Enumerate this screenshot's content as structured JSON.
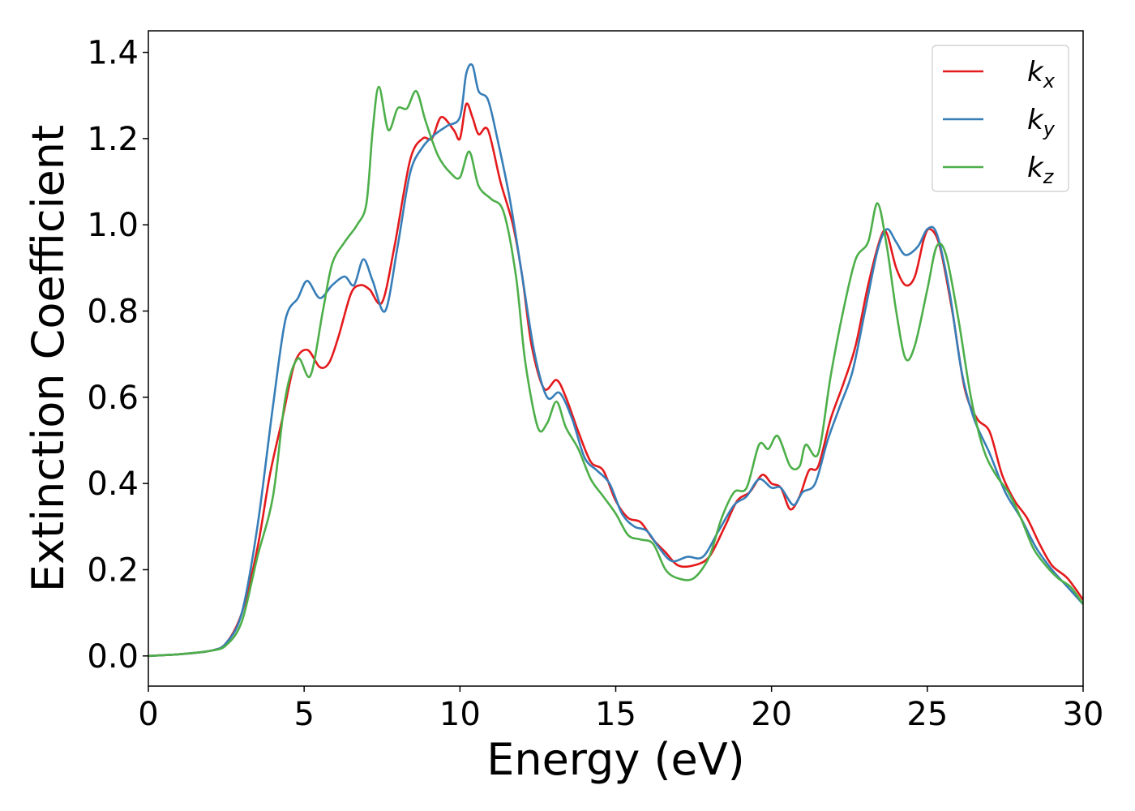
{
  "chart_data": {
    "type": "line",
    "title": "",
    "xlabel": "Energy (eV)",
    "ylabel": "Extinction Coefficient",
    "xlim": [
      0,
      30
    ],
    "ylim": [
      -0.07,
      1.45
    ],
    "xticks": [
      0,
      5,
      10,
      15,
      20,
      25,
      30
    ],
    "xtick_labels": [
      "0",
      "5",
      "10",
      "15",
      "20",
      "25",
      "30"
    ],
    "yticks": [
      0.0,
      0.2,
      0.4,
      0.6,
      0.8,
      1.0,
      1.2,
      1.4
    ],
    "ytick_labels": [
      "0.0",
      "0.2",
      "0.4",
      "0.6",
      "0.8",
      "1.0",
      "1.2",
      "1.4"
    ],
    "grid": false,
    "legend_position": "top-right",
    "series": [
      {
        "name": "k_x",
        "label_base": "k",
        "label_sub": "x",
        "color": "#e41a1c",
        "points": [
          [
            0,
            0
          ],
          [
            1,
            0.004
          ],
          [
            2,
            0.012
          ],
          [
            2.5,
            0.03
          ],
          [
            3,
            0.1
          ],
          [
            3.5,
            0.25
          ],
          [
            3.9,
            0.42
          ],
          [
            4.3,
            0.55
          ],
          [
            4.7,
            0.68
          ],
          [
            5.1,
            0.71
          ],
          [
            5.5,
            0.67
          ],
          [
            5.8,
            0.68
          ],
          [
            6.1,
            0.74
          ],
          [
            6.5,
            0.84
          ],
          [
            6.8,
            0.86
          ],
          [
            7.1,
            0.85
          ],
          [
            7.5,
            0.82
          ],
          [
            7.9,
            0.95
          ],
          [
            8.4,
            1.15
          ],
          [
            8.8,
            1.2
          ],
          [
            9.1,
            1.2
          ],
          [
            9.4,
            1.25
          ],
          [
            9.8,
            1.22
          ],
          [
            10.0,
            1.2
          ],
          [
            10.2,
            1.28
          ],
          [
            10.4,
            1.25
          ],
          [
            10.6,
            1.21
          ],
          [
            10.9,
            1.22
          ],
          [
            11.3,
            1.1
          ],
          [
            11.7,
            1.0
          ],
          [
            12.0,
            0.88
          ],
          [
            12.3,
            0.72
          ],
          [
            12.7,
            0.62
          ],
          [
            13.1,
            0.64
          ],
          [
            13.4,
            0.6
          ],
          [
            13.8,
            0.52
          ],
          [
            14.2,
            0.45
          ],
          [
            14.6,
            0.43
          ],
          [
            15.0,
            0.36
          ],
          [
            15.4,
            0.32
          ],
          [
            15.8,
            0.31
          ],
          [
            16.2,
            0.27
          ],
          [
            16.6,
            0.24
          ],
          [
            17.0,
            0.21
          ],
          [
            17.5,
            0.21
          ],
          [
            18.0,
            0.23
          ],
          [
            18.5,
            0.3
          ],
          [
            18.9,
            0.36
          ],
          [
            19.3,
            0.38
          ],
          [
            19.7,
            0.42
          ],
          [
            20.0,
            0.4
          ],
          [
            20.3,
            0.39
          ],
          [
            20.6,
            0.34
          ],
          [
            20.9,
            0.37
          ],
          [
            21.2,
            0.43
          ],
          [
            21.5,
            0.44
          ],
          [
            21.9,
            0.55
          ],
          [
            22.3,
            0.63
          ],
          [
            22.7,
            0.72
          ],
          [
            23.1,
            0.86
          ],
          [
            23.5,
            0.97
          ],
          [
            23.7,
            0.98
          ],
          [
            24.0,
            0.9
          ],
          [
            24.3,
            0.86
          ],
          [
            24.6,
            0.88
          ],
          [
            24.9,
            0.97
          ],
          [
            25.1,
            0.99
          ],
          [
            25.4,
            0.95
          ],
          [
            25.8,
            0.8
          ],
          [
            26.2,
            0.62
          ],
          [
            26.6,
            0.55
          ],
          [
            27.0,
            0.52
          ],
          [
            27.4,
            0.42
          ],
          [
            27.8,
            0.36
          ],
          [
            28.2,
            0.32
          ],
          [
            28.6,
            0.26
          ],
          [
            29.0,
            0.21
          ],
          [
            29.5,
            0.18
          ],
          [
            30.0,
            0.13
          ]
        ]
      },
      {
        "name": "k_y",
        "label_base": "k",
        "label_sub": "y",
        "color": "#377eb8",
        "points": [
          [
            0,
            0
          ],
          [
            1,
            0.004
          ],
          [
            2,
            0.012
          ],
          [
            2.5,
            0.03
          ],
          [
            3,
            0.1
          ],
          [
            3.5,
            0.3
          ],
          [
            4.0,
            0.58
          ],
          [
            4.4,
            0.78
          ],
          [
            4.8,
            0.83
          ],
          [
            5.1,
            0.87
          ],
          [
            5.5,
            0.83
          ],
          [
            5.9,
            0.86
          ],
          [
            6.3,
            0.88
          ],
          [
            6.6,
            0.86
          ],
          [
            6.9,
            0.92
          ],
          [
            7.2,
            0.87
          ],
          [
            7.6,
            0.8
          ],
          [
            8.0,
            0.95
          ],
          [
            8.4,
            1.12
          ],
          [
            8.8,
            1.18
          ],
          [
            9.2,
            1.21
          ],
          [
            9.6,
            1.23
          ],
          [
            10.0,
            1.25
          ],
          [
            10.2,
            1.35
          ],
          [
            10.4,
            1.37
          ],
          [
            10.6,
            1.31
          ],
          [
            10.9,
            1.29
          ],
          [
            11.2,
            1.2
          ],
          [
            11.6,
            1.06
          ],
          [
            12.0,
            0.88
          ],
          [
            12.4,
            0.7
          ],
          [
            12.8,
            0.6
          ],
          [
            13.2,
            0.61
          ],
          [
            13.6,
            0.55
          ],
          [
            14.0,
            0.46
          ],
          [
            14.4,
            0.43
          ],
          [
            14.8,
            0.4
          ],
          [
            15.2,
            0.33
          ],
          [
            15.6,
            0.3
          ],
          [
            16.0,
            0.29
          ],
          [
            16.4,
            0.25
          ],
          [
            16.8,
            0.22
          ],
          [
            17.3,
            0.23
          ],
          [
            17.8,
            0.23
          ],
          [
            18.3,
            0.29
          ],
          [
            18.8,
            0.35
          ],
          [
            19.2,
            0.37
          ],
          [
            19.6,
            0.41
          ],
          [
            20.0,
            0.39
          ],
          [
            20.3,
            0.39
          ],
          [
            20.7,
            0.35
          ],
          [
            21.0,
            0.38
          ],
          [
            21.4,
            0.4
          ],
          [
            21.8,
            0.5
          ],
          [
            22.2,
            0.58
          ],
          [
            22.6,
            0.66
          ],
          [
            23.0,
            0.8
          ],
          [
            23.4,
            0.94
          ],
          [
            23.7,
            0.99
          ],
          [
            24.0,
            0.96
          ],
          [
            24.3,
            0.93
          ],
          [
            24.7,
            0.95
          ],
          [
            25.0,
            0.99
          ],
          [
            25.3,
            0.98
          ],
          [
            25.7,
            0.85
          ],
          [
            26.1,
            0.66
          ],
          [
            26.5,
            0.55
          ],
          [
            27.0,
            0.47
          ],
          [
            27.5,
            0.38
          ],
          [
            28.0,
            0.32
          ],
          [
            28.5,
            0.25
          ],
          [
            29.0,
            0.2
          ],
          [
            29.5,
            0.16
          ],
          [
            30.0,
            0.12
          ]
        ]
      },
      {
        "name": "k_z",
        "label_base": "k",
        "label_sub": "z",
        "color": "#4daf4a",
        "points": [
          [
            0,
            0
          ],
          [
            1,
            0.004
          ],
          [
            2,
            0.012
          ],
          [
            2.5,
            0.025
          ],
          [
            3,
            0.08
          ],
          [
            3.5,
            0.23
          ],
          [
            4.0,
            0.37
          ],
          [
            4.4,
            0.6
          ],
          [
            4.8,
            0.69
          ],
          [
            5.2,
            0.65
          ],
          [
            5.6,
            0.8
          ],
          [
            5.9,
            0.91
          ],
          [
            6.3,
            0.96
          ],
          [
            6.7,
            1.0
          ],
          [
            7.0,
            1.05
          ],
          [
            7.2,
            1.22
          ],
          [
            7.4,
            1.32
          ],
          [
            7.7,
            1.22
          ],
          [
            8.0,
            1.27
          ],
          [
            8.3,
            1.27
          ],
          [
            8.6,
            1.31
          ],
          [
            8.9,
            1.24
          ],
          [
            9.3,
            1.16
          ],
          [
            9.7,
            1.12
          ],
          [
            10.0,
            1.11
          ],
          [
            10.3,
            1.17
          ],
          [
            10.6,
            1.09
          ],
          [
            11.0,
            1.06
          ],
          [
            11.4,
            1.03
          ],
          [
            11.8,
            0.88
          ],
          [
            12.1,
            0.68
          ],
          [
            12.5,
            0.53
          ],
          [
            12.8,
            0.54
          ],
          [
            13.1,
            0.59
          ],
          [
            13.4,
            0.53
          ],
          [
            13.8,
            0.48
          ],
          [
            14.2,
            0.41
          ],
          [
            14.6,
            0.37
          ],
          [
            15.0,
            0.33
          ],
          [
            15.4,
            0.28
          ],
          [
            15.8,
            0.27
          ],
          [
            16.2,
            0.26
          ],
          [
            16.6,
            0.2
          ],
          [
            17.0,
            0.18
          ],
          [
            17.5,
            0.18
          ],
          [
            18.0,
            0.23
          ],
          [
            18.4,
            0.32
          ],
          [
            18.8,
            0.38
          ],
          [
            19.2,
            0.39
          ],
          [
            19.6,
            0.49
          ],
          [
            19.9,
            0.48
          ],
          [
            20.2,
            0.51
          ],
          [
            20.6,
            0.44
          ],
          [
            20.9,
            0.44
          ],
          [
            21.1,
            0.49
          ],
          [
            21.5,
            0.47
          ],
          [
            21.9,
            0.65
          ],
          [
            22.3,
            0.8
          ],
          [
            22.7,
            0.92
          ],
          [
            23.1,
            0.96
          ],
          [
            23.4,
            1.05
          ],
          [
            23.7,
            0.95
          ],
          [
            24.0,
            0.8
          ],
          [
            24.3,
            0.69
          ],
          [
            24.6,
            0.72
          ],
          [
            25.0,
            0.85
          ],
          [
            25.3,
            0.95
          ],
          [
            25.6,
            0.93
          ],
          [
            26.0,
            0.78
          ],
          [
            26.4,
            0.6
          ],
          [
            26.8,
            0.48
          ],
          [
            27.2,
            0.42
          ],
          [
            27.6,
            0.38
          ],
          [
            28.0,
            0.32
          ],
          [
            28.4,
            0.25
          ],
          [
            28.8,
            0.21
          ],
          [
            29.2,
            0.18
          ],
          [
            29.6,
            0.16
          ],
          [
            30.0,
            0.12
          ]
        ]
      }
    ]
  }
}
